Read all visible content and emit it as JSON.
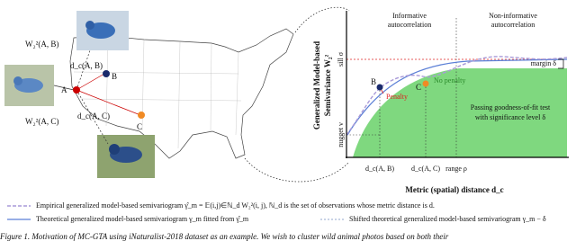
{
  "map": {
    "photo_edges": [
      "W₂²(A, B)",
      "W₂²(A, C)"
    ],
    "distances": [
      "d_c(A, B)",
      "d_c(A, C)"
    ],
    "points": [
      "A",
      "B",
      "C"
    ]
  },
  "plot": {
    "y_label": [
      "Generalized Model-based",
      "Semivariance W₂²"
    ],
    "x_label": "Metric (spatial) distance d_c",
    "regions": [
      "Informative",
      "autocorrelation",
      "Non-informative",
      "autocorrelation"
    ],
    "sill": "sill σ",
    "margin": "margin δ",
    "nugget": "nugget ν",
    "penalty": "Penalty",
    "no_penalty": "No penalty",
    "points": [
      "B",
      "C"
    ],
    "pass_text": [
      "Passing goodness-of-fit test",
      "with significance level δ"
    ],
    "x_ticks": [
      "d_c(A, B)",
      "d_c(A, C)",
      "range ρ"
    ]
  },
  "legend": [
    "Empirical generalized model-based semivariogram γ̂_m = 𝔼(i,j)∈ℕ_d W₂²(i, j), ℕ_d is the set of observations whose metric distance is d.",
    "Theoretical generalized model-based semivariogram γ_m fitted from γ̂_m",
    "Shifted theoretical generalized model-based semivariogram γ_m − δ"
  ],
  "caption": "Figure 1. Motivation of MC-GTA using iNaturalist-2018 dataset as an example. We wish to cluster wild animal photos based on both their"
}
